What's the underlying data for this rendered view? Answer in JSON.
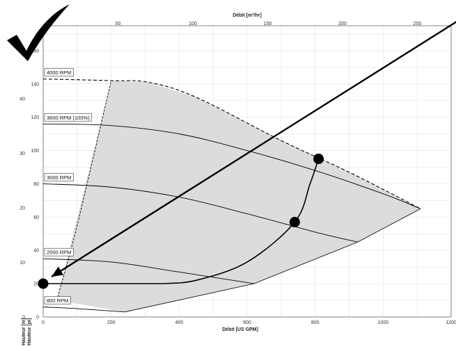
{
  "chart_data": {
    "type": "line",
    "title": "",
    "xlabel_bottom": "Débit [US GPM]",
    "xlabel_top": "Débit [m³/hr]",
    "ylabel_left_feet": "Hauteur [pi]",
    "ylabel_left_meters": "Hauteur [m]",
    "x_gpm_range": [
      0,
      1200
    ],
    "x_gpm_ticks": [
      "0",
      "200",
      "400",
      "600",
      "800",
      "1000",
      "1200"
    ],
    "x_m3h_ticks": [
      "50",
      "100",
      "150",
      "200",
      "250"
    ],
    "y_ft_range": [
      0,
      175
    ],
    "y_ft_ticks": [
      "0",
      "20",
      "40",
      "60",
      "80",
      "100",
      "120",
      "140",
      "160"
    ],
    "y_m_ticks": [
      "0",
      "10",
      "20",
      "30",
      "40"
    ],
    "grid": true,
    "operating_region_fill": "#dcdcdc",
    "series": [
      {
        "name": "4000 RPM",
        "label": "4000 RPM",
        "dashed": true,
        "x": [
          0,
          200,
          310,
          450,
          700,
          900,
          1110
        ],
        "y": [
          143,
          142,
          141,
          132,
          106,
          87,
          65
        ]
      },
      {
        "name": "3600 RPM (100%)",
        "label": "3600 RPM (100%)",
        "dashed": false,
        "x": [
          0,
          200,
          400,
          600,
          800,
          1000,
          1110
        ],
        "y": [
          116,
          115,
          110,
          100,
          88,
          74,
          65
        ]
      },
      {
        "name": "3000 RPM",
        "label": "3000 RPM",
        "dashed": false,
        "x": [
          0,
          200,
          400,
          600,
          800,
          925
        ],
        "y": [
          80,
          78,
          72,
          62,
          51,
          45
        ]
      },
      {
        "name": "2000 RPM",
        "label": "2000 RPM",
        "dashed": false,
        "x": [
          0,
          200,
          400,
          620
        ],
        "y": [
          35,
          33,
          27,
          20
        ]
      },
      {
        "name": "800 RPM",
        "label": "800 RPM",
        "dashed": false,
        "x": [
          0,
          100,
          240
        ],
        "y": [
          6,
          5,
          3
        ]
      }
    ],
    "min_flow_curve": {
      "x": [
        40,
        100,
        200
      ],
      "y": [
        10,
        55,
        142
      ]
    },
    "max_flow_curve": {
      "x": [
        240,
        620,
        925,
        1110
      ],
      "y": [
        3,
        20,
        45,
        65
      ]
    },
    "system_curve": {
      "x": [
        0,
        350,
        450,
        600,
        740,
        785,
        810
      ],
      "y": [
        20,
        20,
        22,
        33,
        57,
        80,
        95
      ]
    },
    "system_points": [
      {
        "x": 0,
        "y": 20
      },
      {
        "x": 740,
        "y": 57
      },
      {
        "x": 810,
        "y": 95
      }
    ],
    "annotation_arrow": {
      "from": {
        "x": 1200,
        "y": 178
      },
      "to": {
        "x": 0,
        "y": 20
      }
    },
    "colors": {
      "curve": "#000000",
      "grid": "#e3e3e3",
      "fill": "#dcdcdc",
      "checkmark": "#000000"
    },
    "checkmark_icon": "checkmark-icon"
  }
}
